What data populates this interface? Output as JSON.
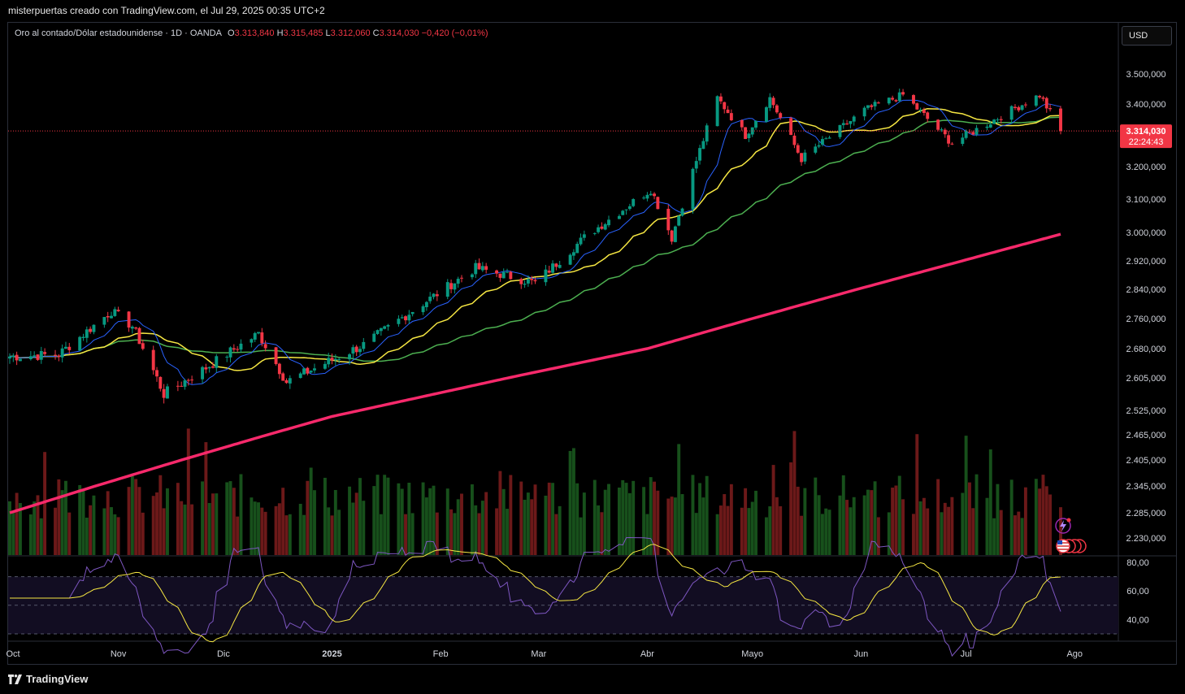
{
  "header": {
    "caption": "misterpuertas creado con TradingView.com, el Jul 29, 2025 00:35 UTC+2"
  },
  "legend": {
    "symbol": "Oro al contado/Dólar estadounidense · 1D · OANDA",
    "o_label": "O",
    "o_value": "3.313,840",
    "h_label": "H",
    "h_value": "3.315,485",
    "l_label": "L",
    "l_value": "3.312,060",
    "c_label": "C",
    "c_value": "3.314,030",
    "change": "−0,420 (−0,01%)"
  },
  "currency_button": "USD",
  "price_tag": {
    "price": "3.314,030",
    "countdown": "22:24:43"
  },
  "footer": {
    "brand": "TradingView"
  },
  "colors": {
    "up": "#26a69a",
    "down": "#f23645",
    "upCandle": "#089981",
    "ma_fast": "#2962ff",
    "ma_mid": "#f5e642",
    "ma_slow": "#4caf50",
    "ma_long": "#f7296b",
    "rsi": "#7e57c2",
    "rsi_ma": "#f5e642"
  },
  "chart_data": {
    "type": "candlestick",
    "x_labels": [
      "Oct",
      "Nov",
      "Dic",
      "2025",
      "Feb",
      "Mar",
      "Abr",
      "Mayo",
      "Jun",
      "Jul",
      "Ago"
    ],
    "y_ticks": [
      "3.500,000",
      "3.400,000",
      "3.200,000",
      "3.100,000",
      "3.000,000",
      "2.920,000",
      "2.840,000",
      "2.760,000",
      "2.680,000",
      "2.605,000",
      "2.525,000",
      "2.465,000",
      "2.405,000",
      "2.345,000",
      "2.285,000",
      "2.230,000"
    ],
    "y_tick_values": [
      3500,
      3400,
      3200,
      3100,
      3000,
      2920,
      2840,
      2760,
      2680,
      2605,
      2525,
      2465,
      2405,
      2345,
      2285,
      2230
    ],
    "rsi_ticks": [
      "80,00",
      "60,00",
      "40,00"
    ],
    "rsi_tick_values": [
      80,
      60,
      40
    ],
    "current_price": 3314.03,
    "closes_keypoints": [
      {
        "date": "2024-10-01",
        "close": 2660
      },
      {
        "date": "2024-10-15",
        "close": 2665
      },
      {
        "date": "2024-10-30",
        "close": 2780
      },
      {
        "date": "2024-11-05",
        "close": 2740
      },
      {
        "date": "2024-11-14",
        "close": 2565
      },
      {
        "date": "2024-11-25",
        "close": 2625
      },
      {
        "date": "2024-12-11",
        "close": 2720
      },
      {
        "date": "2024-12-19",
        "close": 2595
      },
      {
        "date": "2025-01-10",
        "close": 2690
      },
      {
        "date": "2025-02-11",
        "close": 2900
      },
      {
        "date": "2025-02-28",
        "close": 2858
      },
      {
        "date": "2025-03-14",
        "close": 2985
      },
      {
        "date": "2025-04-02",
        "close": 3130
      },
      {
        "date": "2025-04-08",
        "close": 2985
      },
      {
        "date": "2025-04-21",
        "close": 3420
      },
      {
        "date": "2025-04-29",
        "close": 3300
      },
      {
        "date": "2025-05-06",
        "close": 3420
      },
      {
        "date": "2025-05-15",
        "close": 3225
      },
      {
        "date": "2025-06-02",
        "close": 3380
      },
      {
        "date": "2025-06-13",
        "close": 3430
      },
      {
        "date": "2025-06-27",
        "close": 3275
      },
      {
        "date": "2025-07-22",
        "close": 3430
      },
      {
        "date": "2025-07-28",
        "close": 3314
      }
    ],
    "ma_long_keypoints": [
      {
        "date": "2024-10-01",
        "value": 2285
      },
      {
        "date": "2025-01-01",
        "value": 2510
      },
      {
        "date": "2025-04-01",
        "value": 2680
      },
      {
        "date": "2025-07-28",
        "value": 2995
      }
    ],
    "rsi_range": [
      30,
      80
    ],
    "rsi_levels": [
      70,
      50,
      30
    ]
  }
}
